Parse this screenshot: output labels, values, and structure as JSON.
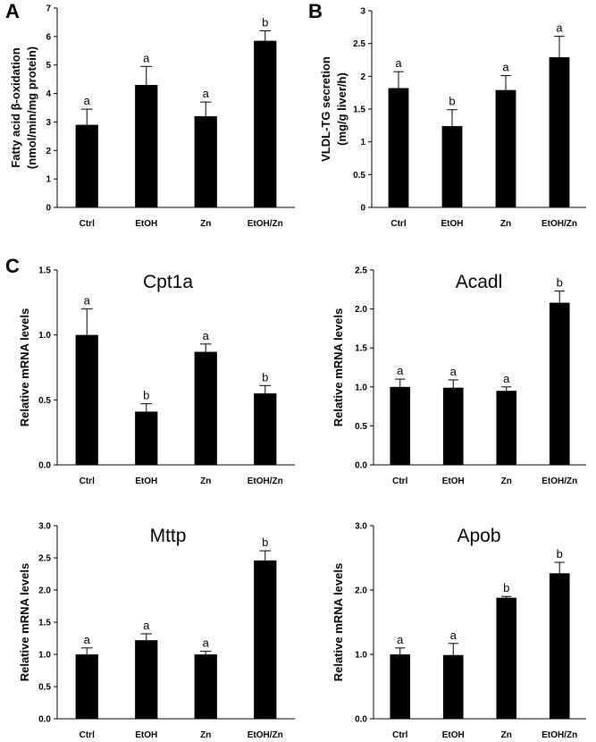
{
  "panel_labels": {
    "a": "A",
    "b": "B",
    "c": "C"
  },
  "chart_data": [
    {
      "type": "bar",
      "categories": [
        "Ctrl",
        "EtOH",
        "Zn",
        "EtOH/Zn"
      ],
      "values": [
        2.9,
        4.3,
        3.2,
        5.85
      ],
      "errors": [
        0.55,
        0.65,
        0.5,
        0.35
      ],
      "significance": [
        "a",
        "a",
        "a",
        "b"
      ],
      "title": "",
      "ylabel": [
        "Fatty acid β-oxidation",
        "(nmol/min/mg protein)"
      ],
      "ylim": [
        0,
        7
      ],
      "yticks": [
        "0",
        "1",
        "2",
        "3",
        "4",
        "5",
        "6",
        "7"
      ],
      "bar_color": "#000000"
    },
    {
      "type": "bar",
      "categories": [
        "Ctrl",
        "EtOH",
        "Zn",
        "EtOH/Zn"
      ],
      "values": [
        1.82,
        1.24,
        1.79,
        2.29
      ],
      "errors": [
        0.25,
        0.25,
        0.22,
        0.32
      ],
      "significance": [
        "a",
        "b",
        "a",
        "a"
      ],
      "title": "",
      "ylabel": [
        "VLDL-TG secretion",
        "(mg/g liver/h)"
      ],
      "ylim": [
        0,
        3
      ],
      "yticks": [
        "0",
        "0.5",
        "1",
        "1.5",
        "2",
        "2.5",
        "3"
      ],
      "bar_color": "#000000"
    },
    {
      "type": "bar",
      "categories": [
        "Ctrl",
        "EtOH",
        "Zn",
        "EtOH/Zn"
      ],
      "values": [
        1.0,
        0.41,
        0.87,
        0.55
      ],
      "errors": [
        0.2,
        0.06,
        0.06,
        0.06
      ],
      "significance": [
        "a",
        "b",
        "a",
        "b"
      ],
      "title": "Cpt1a",
      "ylabel": [
        "Relative mRNA levels"
      ],
      "ylim": [
        0,
        1.5
      ],
      "yticks": [
        "0.0",
        "0.5",
        "1.0",
        "1.5"
      ],
      "bar_color": "#000000"
    },
    {
      "type": "bar",
      "categories": [
        "Ctrl",
        "EtOH",
        "Zn",
        "EtOH/Zn"
      ],
      "values": [
        1.0,
        0.99,
        0.95,
        2.08
      ],
      "errors": [
        0.1,
        0.1,
        0.05,
        0.15
      ],
      "significance": [
        "a",
        "a",
        "a",
        "b"
      ],
      "title": "Acadl",
      "ylabel": [
        "Relative mRNA levels"
      ],
      "ylim": [
        0,
        2.5
      ],
      "yticks": [
        "0.0",
        "0.5",
        "1.0",
        "1.5",
        "2.0",
        "2.5"
      ],
      "bar_color": "#000000"
    },
    {
      "type": "bar",
      "categories": [
        "Ctrl",
        "EtOH",
        "Zn",
        "EtOH/Zn"
      ],
      "values": [
        1.0,
        1.22,
        1.0,
        2.46
      ],
      "errors": [
        0.1,
        0.1,
        0.05,
        0.15
      ],
      "significance": [
        "a",
        "a",
        "a",
        "b"
      ],
      "title": "Mttp",
      "ylabel": [
        "Relative mRNA levels"
      ],
      "ylim": [
        0,
        3.0
      ],
      "yticks": [
        "0.0",
        "0.5",
        "1.0",
        "1.5",
        "2.0",
        "2.5",
        "3.0"
      ],
      "bar_color": "#000000"
    },
    {
      "type": "bar",
      "categories": [
        "Ctrl",
        "EtOH",
        "Zn",
        "EtOH/Zn"
      ],
      "values": [
        1.0,
        0.99,
        1.88,
        2.26
      ],
      "errors": [
        0.1,
        0.18,
        0.02,
        0.17
      ],
      "significance": [
        "a",
        "a",
        "b",
        "b"
      ],
      "title": "Apob",
      "ylabel": [
        "Relative mRNA levels"
      ],
      "ylim": [
        0,
        3.0
      ],
      "yticks": [
        "0.0",
        "1.0",
        "2.0",
        "3.0"
      ],
      "bar_color": "#000000"
    }
  ]
}
